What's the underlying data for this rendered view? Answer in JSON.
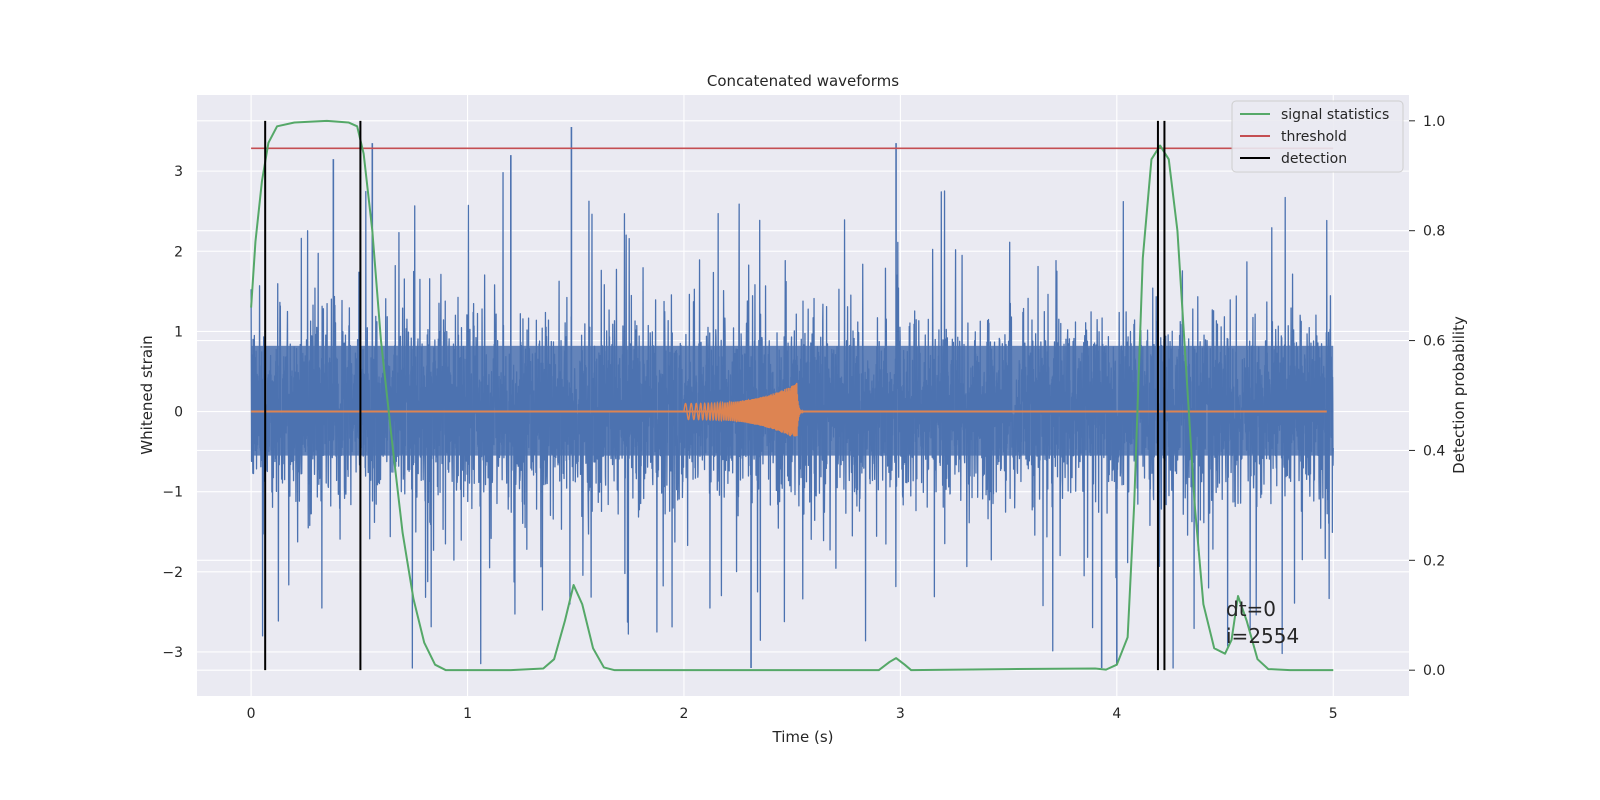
{
  "chart_data": {
    "type": "line",
    "title": "Concatenated waveforms",
    "xlabel": "Time (s)",
    "ylabel": "Whitened strain",
    "ylabel_right": "Detection probability",
    "xlim": [
      -0.25,
      5.35
    ],
    "ylim": [
      -3.55,
      3.95
    ],
    "ylim_right": [
      -0.047,
      1.047
    ],
    "x_ticks": [
      "0",
      "1",
      "2",
      "3",
      "4",
      "5"
    ],
    "y_ticks": [
      "3",
      "2",
      "1",
      "0",
      "−1",
      "−2",
      "−3"
    ],
    "y_ticks_right": [
      "1.0",
      "0.8",
      "0.6",
      "0.4",
      "0.2",
      "0.0"
    ],
    "grid": true,
    "legend_position": "upper right",
    "colors": {
      "strain": "#4c72b0",
      "template": "#dd8452",
      "signal": "#55a868",
      "threshold": "#c44e52",
      "detection": "#000000",
      "axes_bg": "#eaeaf2",
      "grid": "#ffffff"
    },
    "legend": [
      {
        "label": "signal statistics",
        "color": "#55a868"
      },
      {
        "label": "threshold",
        "color": "#c44e52"
      },
      {
        "label": "detection",
        "color": "#000000"
      }
    ],
    "threshold": 0.95,
    "detection_times": [
      0.065,
      0.505,
      4.19,
      4.22
    ],
    "template_waveform": {
      "t_start": 2.0,
      "t_end": 2.52,
      "start_amplitude": 0.1,
      "peak_amplitude": 0.35
    },
    "strain_series": {
      "t_start": 0.0,
      "t_end": 5.0,
      "typical_band": [
        -0.55,
        0.82
      ],
      "peak_max": 3.55,
      "peak_min": -3.2
    },
    "signal_statistics": {
      "x": [
        0.0,
        0.02,
        0.05,
        0.08,
        0.12,
        0.2,
        0.35,
        0.45,
        0.49,
        0.52,
        0.56,
        0.6,
        0.65,
        0.7,
        0.75,
        0.8,
        0.85,
        0.9,
        1.0,
        1.2,
        1.35,
        1.4,
        1.45,
        1.49,
        1.53,
        1.58,
        1.63,
        1.68,
        1.8,
        2.0,
        2.5,
        2.9,
        2.95,
        2.98,
        3.02,
        3.05,
        3.5,
        3.9,
        3.95,
        4.0,
        4.05,
        4.08,
        4.12,
        4.16,
        4.2,
        4.24,
        4.28,
        4.32,
        4.36,
        4.4,
        4.45,
        4.5,
        4.53,
        4.56,
        4.6,
        4.65,
        4.7,
        4.8,
        5.0
      ],
      "y": [
        0.66,
        0.78,
        0.89,
        0.96,
        0.99,
        0.997,
        1.0,
        0.997,
        0.99,
        0.94,
        0.8,
        0.6,
        0.42,
        0.25,
        0.13,
        0.05,
        0.01,
        0.0,
        0.0,
        0.0,
        0.003,
        0.02,
        0.09,
        0.155,
        0.12,
        0.04,
        0.005,
        0.0,
        0.0,
        0.0,
        0.0,
        0.0,
        0.015,
        0.022,
        0.01,
        0.0,
        0.002,
        0.003,
        0.001,
        0.01,
        0.06,
        0.3,
        0.75,
        0.93,
        0.955,
        0.93,
        0.8,
        0.55,
        0.3,
        0.12,
        0.04,
        0.03,
        0.055,
        0.135,
        0.09,
        0.02,
        0.002,
        0.0,
        0.0
      ]
    },
    "annotations": [
      "dt=0",
      "i=2554"
    ]
  }
}
